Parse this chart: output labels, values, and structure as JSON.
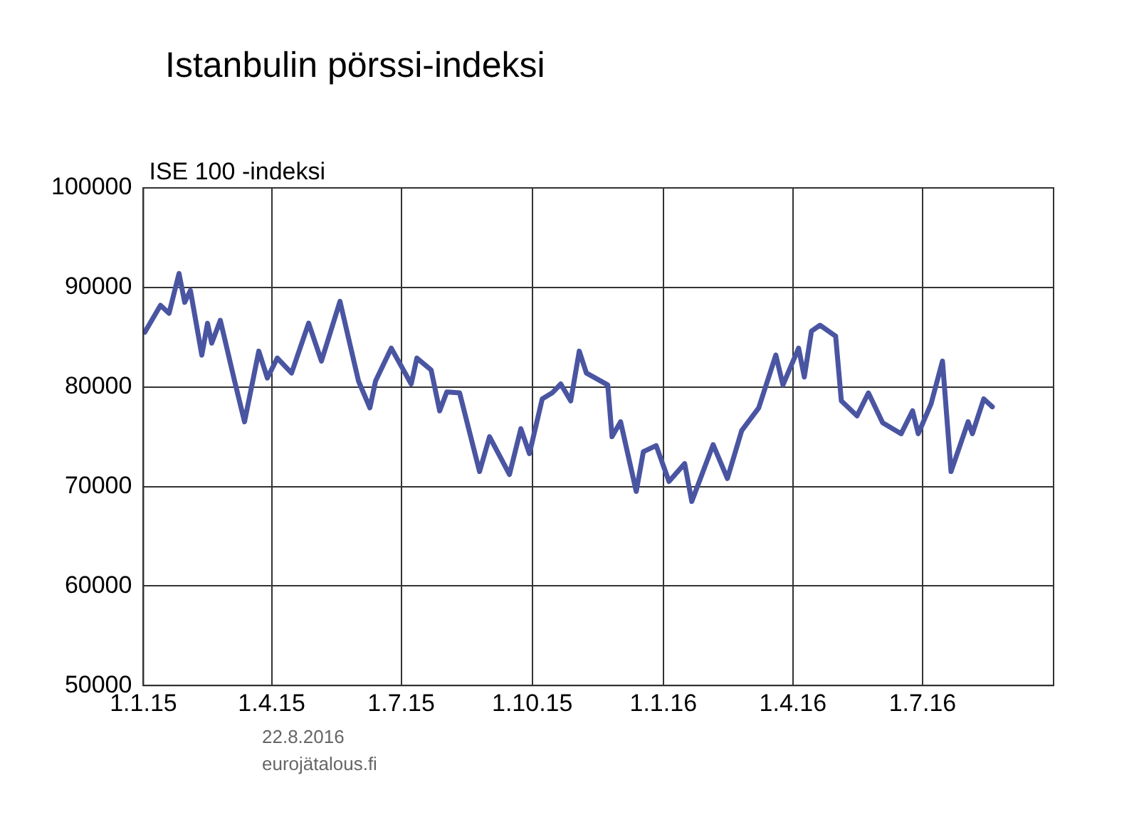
{
  "chart_data": {
    "type": "line",
    "title": "Istanbulin pörssi-indeksi",
    "ylabel": "ISE 100 -indeksi",
    "annotations": [
      "22.8.2016",
      "eurojätalous.fi"
    ],
    "x": [
      "2015-01-02",
      "2015-01-13",
      "2015-01-19",
      "2015-01-26",
      "2015-01-30",
      "2015-02-03",
      "2015-02-11",
      "2015-02-15",
      "2015-02-18",
      "2015-02-24",
      "2015-03-06",
      "2015-03-13",
      "2015-03-23",
      "2015-03-29",
      "2015-04-05",
      "2015-04-15",
      "2015-04-27",
      "2015-05-06",
      "2015-05-19",
      "2015-06-01",
      "2015-06-09",
      "2015-06-13",
      "2015-06-24",
      "2015-07-08",
      "2015-07-12",
      "2015-07-22",
      "2015-07-28",
      "2015-08-02",
      "2015-08-11",
      "2015-08-25",
      "2015-09-01",
      "2015-09-15",
      "2015-09-23",
      "2015-09-29",
      "2015-10-08",
      "2015-10-15",
      "2015-10-21",
      "2015-10-28",
      "2015-11-03",
      "2015-11-08",
      "2015-11-23",
      "2015-11-26",
      "2015-12-02",
      "2015-12-13",
      "2015-12-18",
      "2015-12-27",
      "2016-01-05",
      "2016-01-16",
      "2016-01-21",
      "2016-02-05",
      "2016-02-15",
      "2016-02-25",
      "2016-03-08",
      "2016-03-20",
      "2016-03-25",
      "2016-04-05",
      "2016-04-09",
      "2016-04-14",
      "2016-04-20",
      "2016-05-01",
      "2016-05-05",
      "2016-05-16",
      "2016-05-24",
      "2016-06-03",
      "2016-06-16",
      "2016-06-24",
      "2016-06-28",
      "2016-07-07",
      "2016-07-15",
      "2016-07-21",
      "2016-08-02",
      "2016-08-05",
      "2016-08-13",
      "2016-08-19"
    ],
    "series": [
      {
        "color": "#4a55a2",
        "values": [
          85500,
          88200,
          87400,
          91400,
          88500,
          89700,
          83200,
          86400,
          84400,
          86700,
          80600,
          76500,
          83600,
          80900,
          82900,
          81400,
          86400,
          82600,
          88600,
          80600,
          77900,
          80600,
          83900,
          80300,
          82900,
          81700,
          77600,
          79500,
          79400,
          71500,
          75000,
          71200,
          75800,
          73300,
          78800,
          79400,
          80300,
          78600,
          83600,
          81400,
          80200,
          75000,
          76500,
          69500,
          73500,
          74100,
          70500,
          72300,
          68500,
          74200,
          70800,
          75600,
          77900,
          83200,
          80200,
          83900,
          81000,
          85600,
          86200,
          85100,
          78600,
          77100,
          79400,
          76400,
          75300,
          77600,
          75300,
          78300,
          82600,
          71500,
          76500,
          75300,
          78800,
          78000
        ]
      }
    ],
    "xlim": [
      "2015-01-01",
      "2016-10-01"
    ],
    "xticks": [
      {
        "value": "2015-01-01",
        "label": "1.1.15"
      },
      {
        "value": "2015-04-01",
        "label": "1.4.15"
      },
      {
        "value": "2015-07-01",
        "label": "1.7.15"
      },
      {
        "value": "2015-10-01",
        "label": "1.10.15"
      },
      {
        "value": "2016-01-01",
        "label": "1.1.16"
      },
      {
        "value": "2016-04-01",
        "label": "1.4.16"
      },
      {
        "value": "2016-07-01",
        "label": "1.7.16"
      }
    ],
    "ylim": [
      50000,
      100000
    ],
    "yticks": [
      50000,
      60000,
      70000,
      80000,
      90000,
      100000
    ],
    "grid": true,
    "legend": false,
    "marker": "none",
    "line_style": "solid"
  }
}
